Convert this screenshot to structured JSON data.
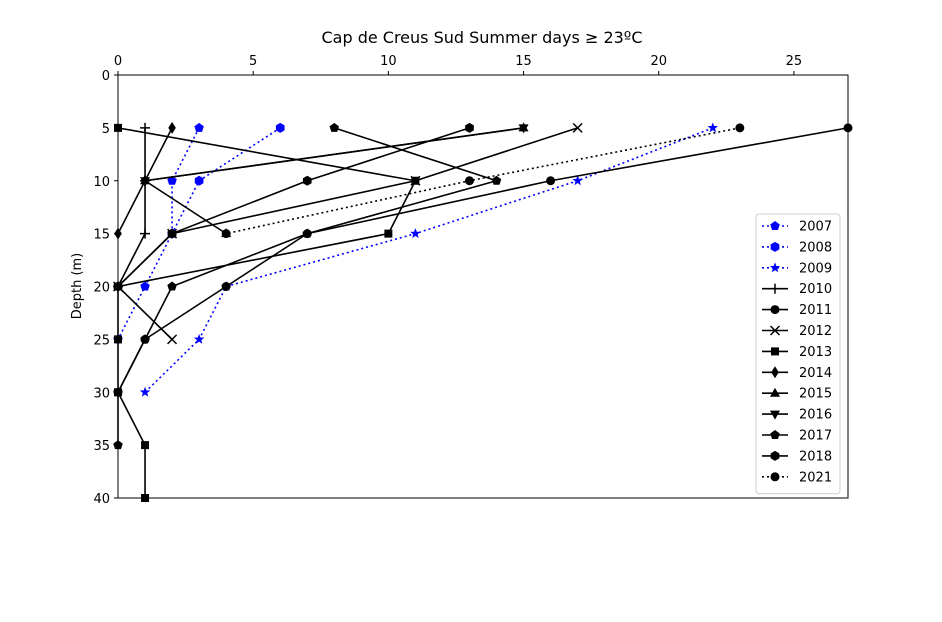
{
  "chart_data": {
    "type": "line",
    "title": "Cap de Creus Sud Summer days ≥ 23ºC",
    "xlabel": "",
    "ylabel": "Depth (m)",
    "x_axis_position": "top",
    "y_inverted": true,
    "xlim": [
      0,
      27
    ],
    "ylim": [
      40,
      0
    ],
    "xticks": [
      0,
      5,
      10,
      15,
      20,
      25
    ],
    "yticks": [
      0,
      5,
      10,
      15,
      20,
      25,
      30,
      35,
      40
    ],
    "grid": false,
    "legend_position": "center-right",
    "series": [
      {
        "name": "2007",
        "color": "#0000ff",
        "linestyle": "dotted",
        "marker": "pentagon",
        "points": [
          {
            "x": 3,
            "y": 5
          },
          {
            "x": 2,
            "y": 10
          },
          {
            "x": 2,
            "y": 15
          },
          {
            "x": 1,
            "y": 20
          },
          {
            "x": 0,
            "y": 25
          }
        ]
      },
      {
        "name": "2008",
        "color": "#0000ff",
        "linestyle": "dotted",
        "marker": "hexagon",
        "points": [
          {
            "x": 6,
            "y": 5
          },
          {
            "x": 3,
            "y": 10
          },
          {
            "x": 2,
            "y": 15
          }
        ]
      },
      {
        "name": "2009",
        "color": "#0000ff",
        "linestyle": "dotted",
        "marker": "star",
        "points": [
          {
            "x": 22,
            "y": 5
          },
          {
            "x": 17,
            "y": 10
          },
          {
            "x": 11,
            "y": 15
          },
          {
            "x": 4,
            "y": 20
          },
          {
            "x": 3,
            "y": 25
          },
          {
            "x": 1,
            "y": 30
          }
        ]
      },
      {
        "name": "2010",
        "color": "#000000",
        "linestyle": "solid",
        "marker": "plus",
        "points": [
          {
            "x": 1,
            "y": 5
          },
          {
            "x": 1,
            "y": 10
          },
          {
            "x": 1,
            "y": 15
          },
          {
            "x": 0,
            "y": 20
          }
        ]
      },
      {
        "name": "2011",
        "color": "#000000",
        "linestyle": "solid",
        "marker": "circle",
        "points": [
          {
            "x": 27,
            "y": 5
          },
          {
            "x": 16,
            "y": 10
          },
          {
            "x": 7,
            "y": 15
          },
          {
            "x": 4,
            "y": 20
          },
          {
            "x": 1,
            "y": 25
          },
          {
            "x": 0,
            "y": 30
          }
        ]
      },
      {
        "name": "2012",
        "color": "#000000",
        "linestyle": "solid",
        "marker": "x",
        "points": [
          {
            "x": 17,
            "y": 5
          },
          {
            "x": 11,
            "y": 10
          },
          {
            "x": 2,
            "y": 15
          },
          {
            "x": 0,
            "y": 20
          },
          {
            "x": 2,
            "y": 25
          }
        ]
      },
      {
        "name": "2013",
        "color": "#000000",
        "linestyle": "solid",
        "marker": "square",
        "points": [
          {
            "x": 0,
            "y": 5
          },
          {
            "x": 11,
            "y": 10
          },
          {
            "x": 10,
            "y": 15
          },
          {
            "x": 0,
            "y": 20
          },
          {
            "x": 0,
            "y": 25
          },
          {
            "x": 0,
            "y": 30
          },
          {
            "x": 1,
            "y": 35
          },
          {
            "x": 1,
            "y": 40
          }
        ]
      },
      {
        "name": "2014",
        "color": "#000000",
        "linestyle": "solid",
        "marker": "diamond",
        "points": [
          {
            "x": 2,
            "y": 5
          },
          {
            "x": 1,
            "y": 10
          },
          {
            "x": 0,
            "y": 15
          }
        ]
      },
      {
        "name": "2015",
        "color": "#000000",
        "linestyle": "solid",
        "marker": "triangle-up",
        "points": [
          {
            "x": 15,
            "y": 5
          },
          {
            "x": 1,
            "y": 10
          },
          {
            "x": 4,
            "y": 15
          }
        ]
      },
      {
        "name": "2016",
        "color": "#000000",
        "linestyle": "solid",
        "marker": "triangle-down",
        "points": [
          {
            "x": 15,
            "y": 5
          },
          {
            "x": 1,
            "y": 10
          }
        ]
      },
      {
        "name": "2017",
        "color": "#000000",
        "linestyle": "solid",
        "marker": "pentagon",
        "points": [
          {
            "x": 8,
            "y": 5
          },
          {
            "x": 14,
            "y": 10
          },
          {
            "x": 7,
            "y": 15
          },
          {
            "x": 2,
            "y": 20
          },
          {
            "x": 1,
            "y": 25
          },
          {
            "x": 0,
            "y": 30
          },
          {
            "x": 0,
            "y": 35
          }
        ]
      },
      {
        "name": "2018",
        "color": "#000000",
        "linestyle": "solid",
        "marker": "hexagon",
        "points": [
          {
            "x": 13,
            "y": 5
          },
          {
            "x": 7,
            "y": 10
          },
          {
            "x": 2,
            "y": 15
          },
          {
            "x": 0,
            "y": 20
          }
        ]
      },
      {
        "name": "2021",
        "color": "#000000",
        "linestyle": "dotted",
        "marker": "circle",
        "points": [
          {
            "x": 23,
            "y": 5
          },
          {
            "x": 13,
            "y": 10
          },
          {
            "x": 4,
            "y": 15
          }
        ]
      }
    ]
  }
}
